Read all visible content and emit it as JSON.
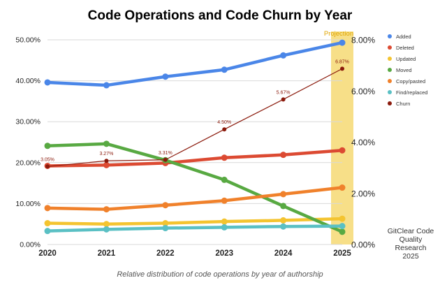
{
  "chart_data": {
    "type": "line",
    "title": "Code Operations and Code Churn by Year",
    "caption": "Relative distribution of code operations by year of authorship",
    "credit": [
      "GitClear Code",
      "Quality",
      "Research",
      "2025"
    ],
    "projection_label": "Projection",
    "projection_color": "#f7df88",
    "categories": [
      "2020",
      "2021",
      "2022",
      "2023",
      "2024",
      "2025"
    ],
    "ylim_left": [
      0,
      50
    ],
    "ylim_right": [
      0,
      8
    ],
    "left_ticks": [
      "0.00%",
      "10.00%",
      "20.00%",
      "30.00%",
      "40.00%",
      "50.00%"
    ],
    "right_ticks": [
      "0.00%",
      "2.00%",
      "4.00%",
      "6.00%",
      "8.00%"
    ],
    "grid": true,
    "legend_position": "right",
    "series": [
      {
        "name": "Added",
        "color": "#4a86e8",
        "axis": "left",
        "values": [
          39.6,
          38.9,
          41.0,
          42.7,
          46.2,
          49.3
        ]
      },
      {
        "name": "Deleted",
        "color": "#dc4a32",
        "axis": "left",
        "values": [
          19.2,
          19.4,
          19.9,
          21.2,
          21.9,
          23.0
        ]
      },
      {
        "name": "Updated",
        "color": "#f4c430",
        "axis": "left",
        "values": [
          5.2,
          5.0,
          5.2,
          5.6,
          5.9,
          6.3
        ]
      },
      {
        "name": "Moved",
        "color": "#58a942",
        "axis": "left",
        "values": [
          24.1,
          24.6,
          20.6,
          15.8,
          9.4,
          3.1
        ]
      },
      {
        "name": "Copy/pasted",
        "color": "#f0812b",
        "axis": "left",
        "values": [
          8.9,
          8.6,
          9.6,
          10.7,
          12.3,
          13.9
        ]
      },
      {
        "name": "Find/replaced",
        "color": "#5ac0c4",
        "axis": "left",
        "values": [
          3.3,
          3.7,
          4.0,
          4.2,
          4.4,
          4.5
        ]
      },
      {
        "name": "Churn",
        "color": "#8b1a0c",
        "axis": "right",
        "values": [
          3.05,
          3.27,
          3.31,
          4.5,
          5.67,
          6.87
        ],
        "labels": [
          "3.05%",
          "3.27%",
          "3.31%",
          "4.50%",
          "5.67%",
          "6.87%"
        ]
      }
    ]
  }
}
